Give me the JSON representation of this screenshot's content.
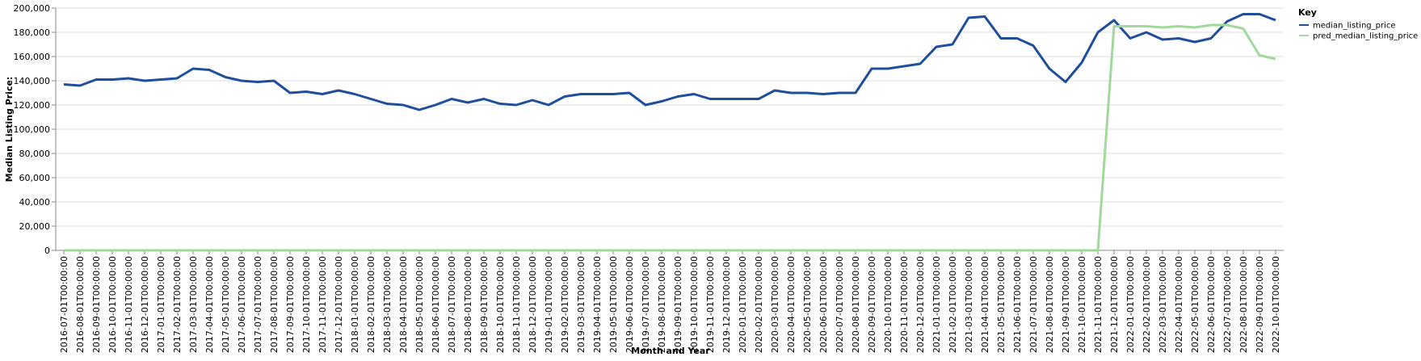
{
  "chart_data": {
    "type": "line",
    "xlabel": "Month and Year",
    "ylabel": "Median Listing Price:",
    "ylim": [
      0,
      200000
    ],
    "y_ticks": [
      0,
      20000,
      40000,
      60000,
      80000,
      100000,
      120000,
      140000,
      160000,
      180000,
      200000
    ],
    "y_tick_labels": [
      "0",
      "20,000",
      "40,000",
      "60,000",
      "80,000",
      "100,000",
      "120,000",
      "140,000",
      "160,000",
      "180,000",
      "200,000"
    ],
    "grid": true,
    "legend": {
      "title": "Key",
      "placement": "right"
    },
    "categories": [
      "2016-07-01T00:00:00",
      "2016-08-01T00:00:00",
      "2016-09-01T00:00:00",
      "2016-10-01T00:00:00",
      "2016-11-01T00:00:00",
      "2016-12-01T00:00:00",
      "2017-01-01T00:00:00",
      "2017-02-01T00:00:00",
      "2017-03-01T00:00:00",
      "2017-04-01T00:00:00",
      "2017-05-01T00:00:00",
      "2017-06-01T00:00:00",
      "2017-07-01T00:00:00",
      "2017-08-01T00:00:00",
      "2017-09-01T00:00:00",
      "2017-10-01T00:00:00",
      "2017-11-01T00:00:00",
      "2017-12-01T00:00:00",
      "2018-01-01T00:00:00",
      "2018-02-01T00:00:00",
      "2018-03-01T00:00:00",
      "2018-04-01T00:00:00",
      "2018-05-01T00:00:00",
      "2018-06-01T00:00:00",
      "2018-07-01T00:00:00",
      "2018-08-01T00:00:00",
      "2018-09-01T00:00:00",
      "2018-10-01T00:00:00",
      "2018-11-01T00:00:00",
      "2018-12-01T00:00:00",
      "2019-01-01T00:00:00",
      "2019-02-01T00:00:00",
      "2019-03-01T00:00:00",
      "2019-04-01T00:00:00",
      "2019-05-01T00:00:00",
      "2019-06-01T00:00:00",
      "2019-07-01T00:00:00",
      "2019-08-01T00:00:00",
      "2019-09-01T00:00:00",
      "2019-10-01T00:00:00",
      "2019-11-01T00:00:00",
      "2019-12-01T00:00:00",
      "2020-01-01T00:00:00",
      "2020-02-01T00:00:00",
      "2020-03-01T00:00:00",
      "2020-04-01T00:00:00",
      "2020-05-01T00:00:00",
      "2020-06-01T00:00:00",
      "2020-07-01T00:00:00",
      "2020-08-01T00:00:00",
      "2020-09-01T00:00:00",
      "2020-10-01T00:00:00",
      "2020-11-01T00:00:00",
      "2020-12-01T00:00:00",
      "2021-01-01T00:00:00",
      "2021-02-01T00:00:00",
      "2021-03-01T00:00:00",
      "2021-04-01T00:00:00",
      "2021-05-01T00:00:00",
      "2021-06-01T00:00:00",
      "2021-07-01T00:00:00",
      "2021-08-01T00:00:00",
      "2021-09-01T00:00:00",
      "2021-10-01T00:00:00",
      "2021-11-01T00:00:00",
      "2021-12-01T00:00:00",
      "2022-01-01T00:00:00",
      "2022-02-01T00:00:00",
      "2022-03-01T00:00:00",
      "2022-04-01T00:00:00",
      "2022-05-01T00:00:00",
      "2022-06-01T00:00:00",
      "2022-07-01T00:00:00",
      "2022-08-01T00:00:00",
      "2022-09-01T00:00:00",
      "2022-10-01T00:00:00"
    ],
    "series": [
      {
        "name": "median_listing_price",
        "color": "#1f4e9c",
        "values": [
          137000,
          136000,
          141000,
          141000,
          142000,
          140000,
          141000,
          142000,
          150000,
          149000,
          143000,
          140000,
          139000,
          140000,
          130000,
          131000,
          129000,
          132000,
          129000,
          125000,
          121000,
          120000,
          116000,
          120000,
          125000,
          122000,
          125000,
          121000,
          120000,
          124000,
          120000,
          127000,
          129000,
          129000,
          129000,
          130000,
          120000,
          123000,
          127000,
          129000,
          125000,
          125000,
          125000,
          125000,
          132000,
          130000,
          130000,
          129000,
          130000,
          130000,
          150000,
          150000,
          152000,
          154000,
          168000,
          170000,
          192000,
          193000,
          175000,
          175000,
          169000,
          150000,
          139000,
          155000,
          180000,
          190000,
          175000,
          180000,
          174000,
          175000,
          172000,
          175000,
          189000,
          195000,
          195000,
          190000
        ]
      },
      {
        "name": "pred_median_listing_price",
        "color": "#a1d99b",
        "values": [
          0,
          0,
          0,
          0,
          0,
          0,
          0,
          0,
          0,
          0,
          0,
          0,
          0,
          0,
          0,
          0,
          0,
          0,
          0,
          0,
          0,
          0,
          0,
          0,
          0,
          0,
          0,
          0,
          0,
          0,
          0,
          0,
          0,
          0,
          0,
          0,
          0,
          0,
          0,
          0,
          0,
          0,
          0,
          0,
          0,
          0,
          0,
          0,
          0,
          0,
          0,
          0,
          0,
          0,
          0,
          0,
          0,
          0,
          0,
          0,
          0,
          0,
          0,
          0,
          0,
          185000,
          185000,
          185000,
          184000,
          185000,
          184000,
          186000,
          186000,
          183000,
          161000,
          158000
        ]
      }
    ]
  }
}
